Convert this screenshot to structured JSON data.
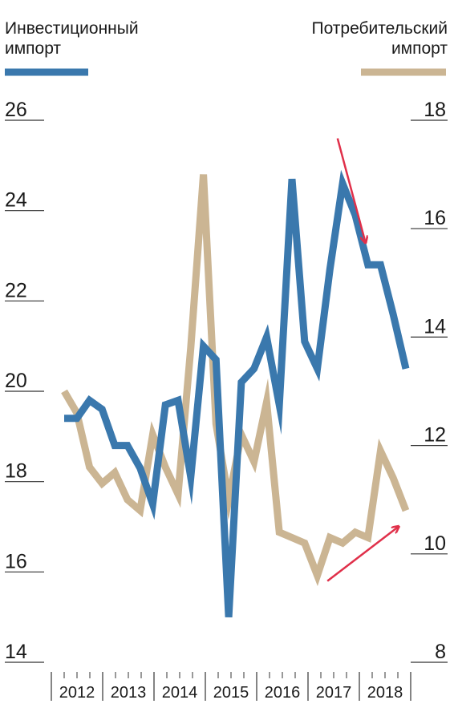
{
  "chart_data": {
    "type": "line",
    "legend": {
      "left_line1": "Инвестиционный",
      "left_line2": "импорт",
      "right_line1": "Потребительский",
      "right_line2": "импорт"
    },
    "years": [
      "2012",
      "2013",
      "2014",
      "2015",
      "2016",
      "2017",
      "2018"
    ],
    "left_axis": {
      "ticks": [
        "26",
        "24",
        "22",
        "20",
        "18",
        "16",
        "14"
      ],
      "ylim": [
        14,
        26
      ]
    },
    "right_axis": {
      "ticks": [
        "18",
        "16",
        "14",
        "12",
        "10",
        "8"
      ],
      "ylim": [
        8,
        18
      ]
    },
    "colors": {
      "investment": "#3a78ad",
      "consumer": "#cbb593",
      "arrow": "#e0304a"
    },
    "series": [
      {
        "name": "Инвестиционный импорт",
        "axis": "left",
        "x": [
          0,
          0.25,
          0.5,
          0.75,
          1,
          1.25,
          1.5,
          1.75,
          2,
          2.25,
          2.5,
          2.75,
          3,
          3.25,
          3.5,
          3.75,
          4,
          4.25,
          4.5,
          4.75,
          5,
          5.25,
          5.5,
          5.75,
          6,
          6.25,
          6.5,
          6.75
        ],
        "values": [
          19.4,
          19.4,
          19.8,
          19.6,
          18.8,
          18.8,
          18.3,
          17.5,
          19.7,
          19.8,
          18.1,
          21.0,
          20.7,
          15.0,
          20.2,
          20.5,
          21.2,
          19.7,
          24.7,
          21.1,
          20.5,
          22.7,
          24.6,
          23.9,
          22.8,
          22.8,
          21.7,
          20.5
        ]
      },
      {
        "name": "Потребительский импорт",
        "axis": "right",
        "x": [
          0,
          0.25,
          0.5,
          0.75,
          1,
          1.25,
          1.5,
          1.75,
          2,
          2.25,
          2.5,
          2.75,
          3,
          3.25,
          3.5,
          3.75,
          4,
          4.25,
          4.5,
          4.75,
          5,
          5.25,
          5.5,
          5.75,
          6,
          6.25,
          6.5,
          6.75
        ],
        "values": [
          13.0,
          12.6,
          11.6,
          11.3,
          11.5,
          11.0,
          10.8,
          12.2,
          11.6,
          11.1,
          13.8,
          17.0,
          12.4,
          11.0,
          12.2,
          11.7,
          12.8,
          10.4,
          10.3,
          10.2,
          9.6,
          10.3,
          10.2,
          10.4,
          10.3,
          11.9,
          11.4,
          10.8
        ]
      }
    ],
    "annotations": [
      {
        "kind": "arrow",
        "desc": "down-arrow-over-investment-2017-2018",
        "from": [
          5.4,
          25.6
        ],
        "to": [
          5.95,
          23.3
        ],
        "axis": "left"
      },
      {
        "kind": "arrow",
        "desc": "up-arrow-under-consumer-2017-2018",
        "from": [
          5.2,
          15.8
        ],
        "to": [
          6.6,
          17.0
        ],
        "axis": "left"
      }
    ]
  }
}
